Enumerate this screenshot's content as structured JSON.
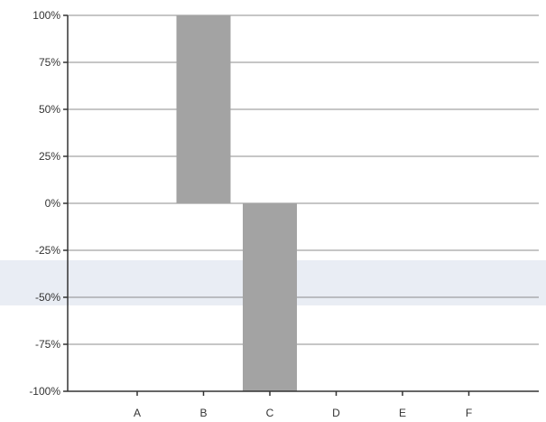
{
  "chart_data": {
    "type": "bar",
    "categories": [
      "A",
      "B",
      "C",
      "D",
      "E",
      "F"
    ],
    "values": [
      0,
      100,
      -100,
      0,
      0,
      0
    ],
    "ylim": [
      -100,
      100
    ],
    "ytick_values": [
      100,
      75,
      50,
      25,
      0,
      -25,
      -50,
      -75,
      -100
    ],
    "ytick_labels": [
      "100%",
      "75%",
      "50%",
      "25%",
      "0%",
      "-25%",
      "-50%",
      "-75%",
      "-100%"
    ],
    "grid": true,
    "colors": {
      "bar": "#a3a3a3",
      "grid": "#8c8c8c",
      "axis": "#333333"
    }
  }
}
